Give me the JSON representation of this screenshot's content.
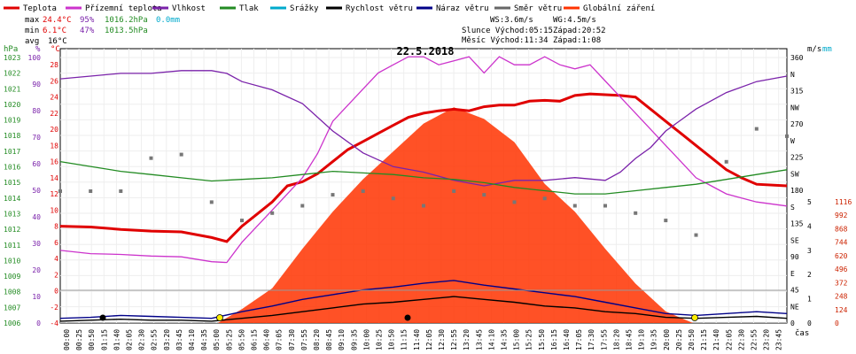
{
  "legend": [
    {
      "label": "Teplota",
      "color": "#e00000"
    },
    {
      "label": "Přízemní teplota",
      "color": "#cc33cc"
    },
    {
      "label": "Vlhkost",
      "color": "#7a22aa"
    },
    {
      "label": "Tlak",
      "color": "#228b22"
    },
    {
      "label": "Srážky",
      "color": "#00aacc"
    },
    {
      "label": "Rychlost větru",
      "color": "#000000"
    },
    {
      "label": "Náraz větru",
      "color": "#000088"
    },
    {
      "label": "Směr větru",
      "color": "#666666"
    },
    {
      "label": "Globální záření",
      "color": "#ff3300"
    }
  ],
  "stats": {
    "max": {
      "label": "max",
      "temp": "24.4°C",
      "hum": "95%",
      "press": "1016.2hPa",
      "rain": "0.0mm"
    },
    "min": {
      "label": "min",
      "temp": "6.1°C",
      "hum": "47%",
      "press": "1013.5hPa"
    },
    "avg": {
      "label": "avg",
      "temp": "16°C"
    }
  },
  "info": {
    "ws": "WS:3.6m/s",
    "wg": "WG:4.5m/s",
    "sun": "Slunce Východ:05:15",
    "sun_set": "Západ:20:52",
    "moon": "Měsíc Východ:11:34",
    "moon_set": "Západ:1:08"
  },
  "date": "22.5.2018",
  "axes": {
    "hpa_label": "hPa",
    "pct_label": "%",
    "c_label": "°C",
    "ms_label": "m/s",
    "mm_label": "mm",
    "time_label": "čas",
    "hpa_ticks": [
      "1023",
      "1022",
      "1021",
      "1020",
      "1019",
      "1018",
      "1017",
      "1016",
      "1015",
      "1014",
      "1013",
      "1012",
      "1011",
      "1010",
      "1009",
      "1008",
      "1007",
      "1006"
    ],
    "pct_ticks": [
      "100",
      "90",
      "80",
      "70",
      "60",
      "50",
      "40",
      "30",
      "20",
      "10",
      "0"
    ],
    "c_ticks": [
      "28",
      "26",
      "24",
      "22",
      "20",
      "18",
      "16",
      "14",
      "12",
      "10",
      "8",
      "6",
      "4",
      "2",
      "0",
      "-2",
      "-4"
    ],
    "dir_ticks": [
      "360",
      "N",
      "315",
      "NW",
      "270",
      "W",
      "225",
      "SW",
      "180",
      "S",
      "135",
      "SE",
      "90",
      "E",
      "45",
      "NE",
      "0"
    ],
    "ms_ticks": [
      "5",
      "4",
      "3",
      "2",
      "1",
      "0"
    ],
    "mm_ticks": [
      "1"
    ],
    "rad_ticks": [
      "1116",
      "992",
      "868",
      "744",
      "620",
      "496",
      "372",
      "248",
      "124",
      "0"
    ],
    "time_ticks": [
      "00:00",
      "00:25",
      "00:50",
      "01:15",
      "01:40",
      "02:05",
      "02:30",
      "02:55",
      "03:20",
      "03:45",
      "04:10",
      "04:35",
      "05:00",
      "05:25",
      "05:50",
      "06:15",
      "06:40",
      "07:05",
      "07:30",
      "07:55",
      "08:20",
      "08:45",
      "09:10",
      "09:35",
      "10:00",
      "10:25",
      "10:50",
      "11:15",
      "11:40",
      "12:05",
      "12:30",
      "12:55",
      "13:20",
      "13:45",
      "14:10",
      "14:35",
      "15:00",
      "15:25",
      "15:50",
      "16:15",
      "16:40",
      "17:05",
      "17:30",
      "17:55",
      "18:20",
      "18:45",
      "19:10",
      "19:35",
      "20:00",
      "20:25",
      "20:50",
      "21:15",
      "21:40",
      "22:05",
      "22:30",
      "22:55",
      "23:20",
      "23:45"
    ]
  },
  "chart_data": {
    "type": "line",
    "title": "22.5.2018",
    "x_unit": "hour",
    "series": [
      {
        "name": "Teplota",
        "unit": "°C",
        "color": "#e00000",
        "x": [
          0,
          1,
          2,
          3,
          4,
          5,
          5.5,
          6,
          6.5,
          7,
          7.5,
          8,
          8.5,
          9,
          9.5,
          10,
          10.5,
          11,
          11.5,
          12,
          12.5,
          13,
          13.5,
          14,
          14.5,
          15,
          15.5,
          16,
          16.5,
          17,
          17.5,
          18,
          18.5,
          19,
          19.5,
          20,
          20.5,
          21,
          21.5,
          22,
          22.5,
          23,
          24
        ],
        "y": [
          8,
          7.9,
          7.6,
          7.4,
          7.3,
          6.6,
          6.1,
          8,
          9.5,
          11,
          13,
          13.5,
          14.5,
          16,
          17.5,
          18.5,
          19.5,
          20.5,
          21.5,
          22,
          22.3,
          22.5,
          22.3,
          22.8,
          23,
          23,
          23.5,
          23.6,
          23.5,
          24.2,
          24.4,
          24.3,
          24.2,
          24,
          22.5,
          21,
          19.5,
          18,
          16.5,
          15,
          14,
          13.2,
          13
        ]
      },
      {
        "name": "Přízemní teplota",
        "unit": "°C",
        "color": "#cc33cc",
        "x": [
          0,
          1,
          2,
          3,
          4,
          5,
          5.5,
          6,
          6.5,
          7,
          7.5,
          8,
          8.5,
          9,
          9.5,
          10,
          10.5,
          11,
          11.5,
          12,
          12.5,
          13,
          13.5,
          14,
          14.5,
          15,
          15.5,
          16,
          16.5,
          17,
          17.5,
          18,
          18.5,
          19,
          19.5,
          20,
          20.5,
          21,
          21.5,
          22,
          22.5,
          23,
          24
        ],
        "y": [
          5,
          4.6,
          4.5,
          4.3,
          4.2,
          3.6,
          3.5,
          6,
          8,
          10,
          12,
          14,
          17,
          21,
          23,
          25,
          27,
          28,
          29,
          29,
          28,
          28.5,
          29,
          27,
          29,
          28,
          28,
          29,
          28,
          27.5,
          28,
          26,
          24,
          22,
          20,
          18,
          16,
          14,
          13,
          12,
          11.5,
          11,
          10.5
        ]
      },
      {
        "name": "Vlhkost",
        "unit": "%",
        "color": "#7a22aa",
        "x": [
          0,
          1,
          2,
          3,
          4,
          5,
          5.5,
          6,
          7,
          8,
          9,
          10,
          11,
          12,
          13,
          14,
          15,
          16,
          17,
          18,
          18.5,
          19,
          19.5,
          20,
          21,
          22,
          23,
          24
        ],
        "y": [
          89,
          90,
          91,
          91,
          92,
          92,
          91,
          88,
          85,
          80,
          70,
          62,
          57,
          55,
          52,
          50,
          52,
          52,
          53,
          52,
          55,
          60,
          64,
          70,
          78,
          84,
          88,
          90
        ]
      },
      {
        "name": "Tlak",
        "unit": "hPa",
        "color": "#228b22",
        "x": [
          0,
          1,
          2,
          3,
          4,
          5,
          6,
          7,
          8,
          9,
          10,
          11,
          12,
          13,
          14,
          15,
          16,
          17,
          18,
          19,
          20,
          21,
          22,
          23,
          24
        ],
        "y": [
          1016,
          1015.7,
          1015.4,
          1015.2,
          1015,
          1014.8,
          1014.9,
          1015,
          1015.2,
          1015.4,
          1015.3,
          1015.2,
          1015,
          1014.9,
          1014.7,
          1014.4,
          1014.2,
          1014,
          1014,
          1014.2,
          1014.4,
          1014.6,
          1014.9,
          1015.2,
          1015.5
        ]
      },
      {
        "name": "Rychlost větru",
        "unit": "m/s",
        "color": "#000000",
        "x": [
          0,
          1,
          2,
          3,
          4,
          5,
          6,
          7,
          8,
          9,
          10,
          11,
          12,
          13,
          14,
          15,
          16,
          17,
          18,
          19,
          20,
          21,
          22,
          23,
          24
        ],
        "y": [
          0.2,
          0.3,
          0.4,
          0.3,
          0.3,
          0.2,
          0.5,
          0.8,
          1.2,
          1.6,
          2,
          2.2,
          2.5,
          2.8,
          2.5,
          2.2,
          1.8,
          1.6,
          1.2,
          1,
          0.6,
          0.5,
          0.6,
          0.7,
          0.5
        ]
      },
      {
        "name": "Náraz větru",
        "unit": "m/s",
        "color": "#000088",
        "x": [
          0,
          1,
          2,
          3,
          4,
          5,
          6,
          7,
          8,
          9,
          10,
          11,
          12,
          13,
          14,
          15,
          16,
          17,
          18,
          19,
          20,
          21,
          22,
          23,
          24
        ],
        "y": [
          0.5,
          0.6,
          0.8,
          0.7,
          0.6,
          0.5,
          1.2,
          1.8,
          2.5,
          3,
          3.5,
          3.8,
          4.2,
          4.5,
          4,
          3.6,
          3.2,
          2.8,
          2.2,
          1.6,
          1,
          0.8,
          1,
          1.2,
          1
        ]
      },
      {
        "name": "Globální záření",
        "unit": "W/m2",
        "color": "#ff3300",
        "x": [
          5.2,
          6,
          7,
          8,
          9,
          10,
          11,
          12,
          13,
          14,
          15,
          16,
          17,
          18,
          19,
          20,
          20.9
        ],
        "y": [
          0,
          60,
          150,
          320,
          480,
          620,
          740,
          860,
          930,
          880,
          780,
          600,
          480,
          320,
          170,
          50,
          0
        ]
      }
    ],
    "wind_direction_deg": {
      "x": [
        0,
        1,
        2,
        3,
        4,
        5,
        6,
        7,
        8,
        9,
        10,
        11,
        12,
        13,
        14,
        15,
        16,
        17,
        18,
        19,
        20,
        21,
        22,
        23,
        24
      ],
      "y": [
        180,
        180,
        180,
        225,
        230,
        165,
        140,
        150,
        160,
        175,
        180,
        170,
        160,
        180,
        175,
        165,
        170,
        160,
        160,
        150,
        140,
        120,
        220,
        265,
        255
      ]
    },
    "axes": {
      "temp_range": [
        -4,
        30
      ],
      "humidity_range": [
        0,
        100
      ],
      "pressure_range": [
        1006,
        1023
      ],
      "wind_range_ms": [
        0,
        5
      ],
      "radiation_range": [
        0,
        1116
      ],
      "direction_range": [
        0,
        360
      ],
      "x_range": [
        0,
        24
      ]
    },
    "grid": true
  }
}
